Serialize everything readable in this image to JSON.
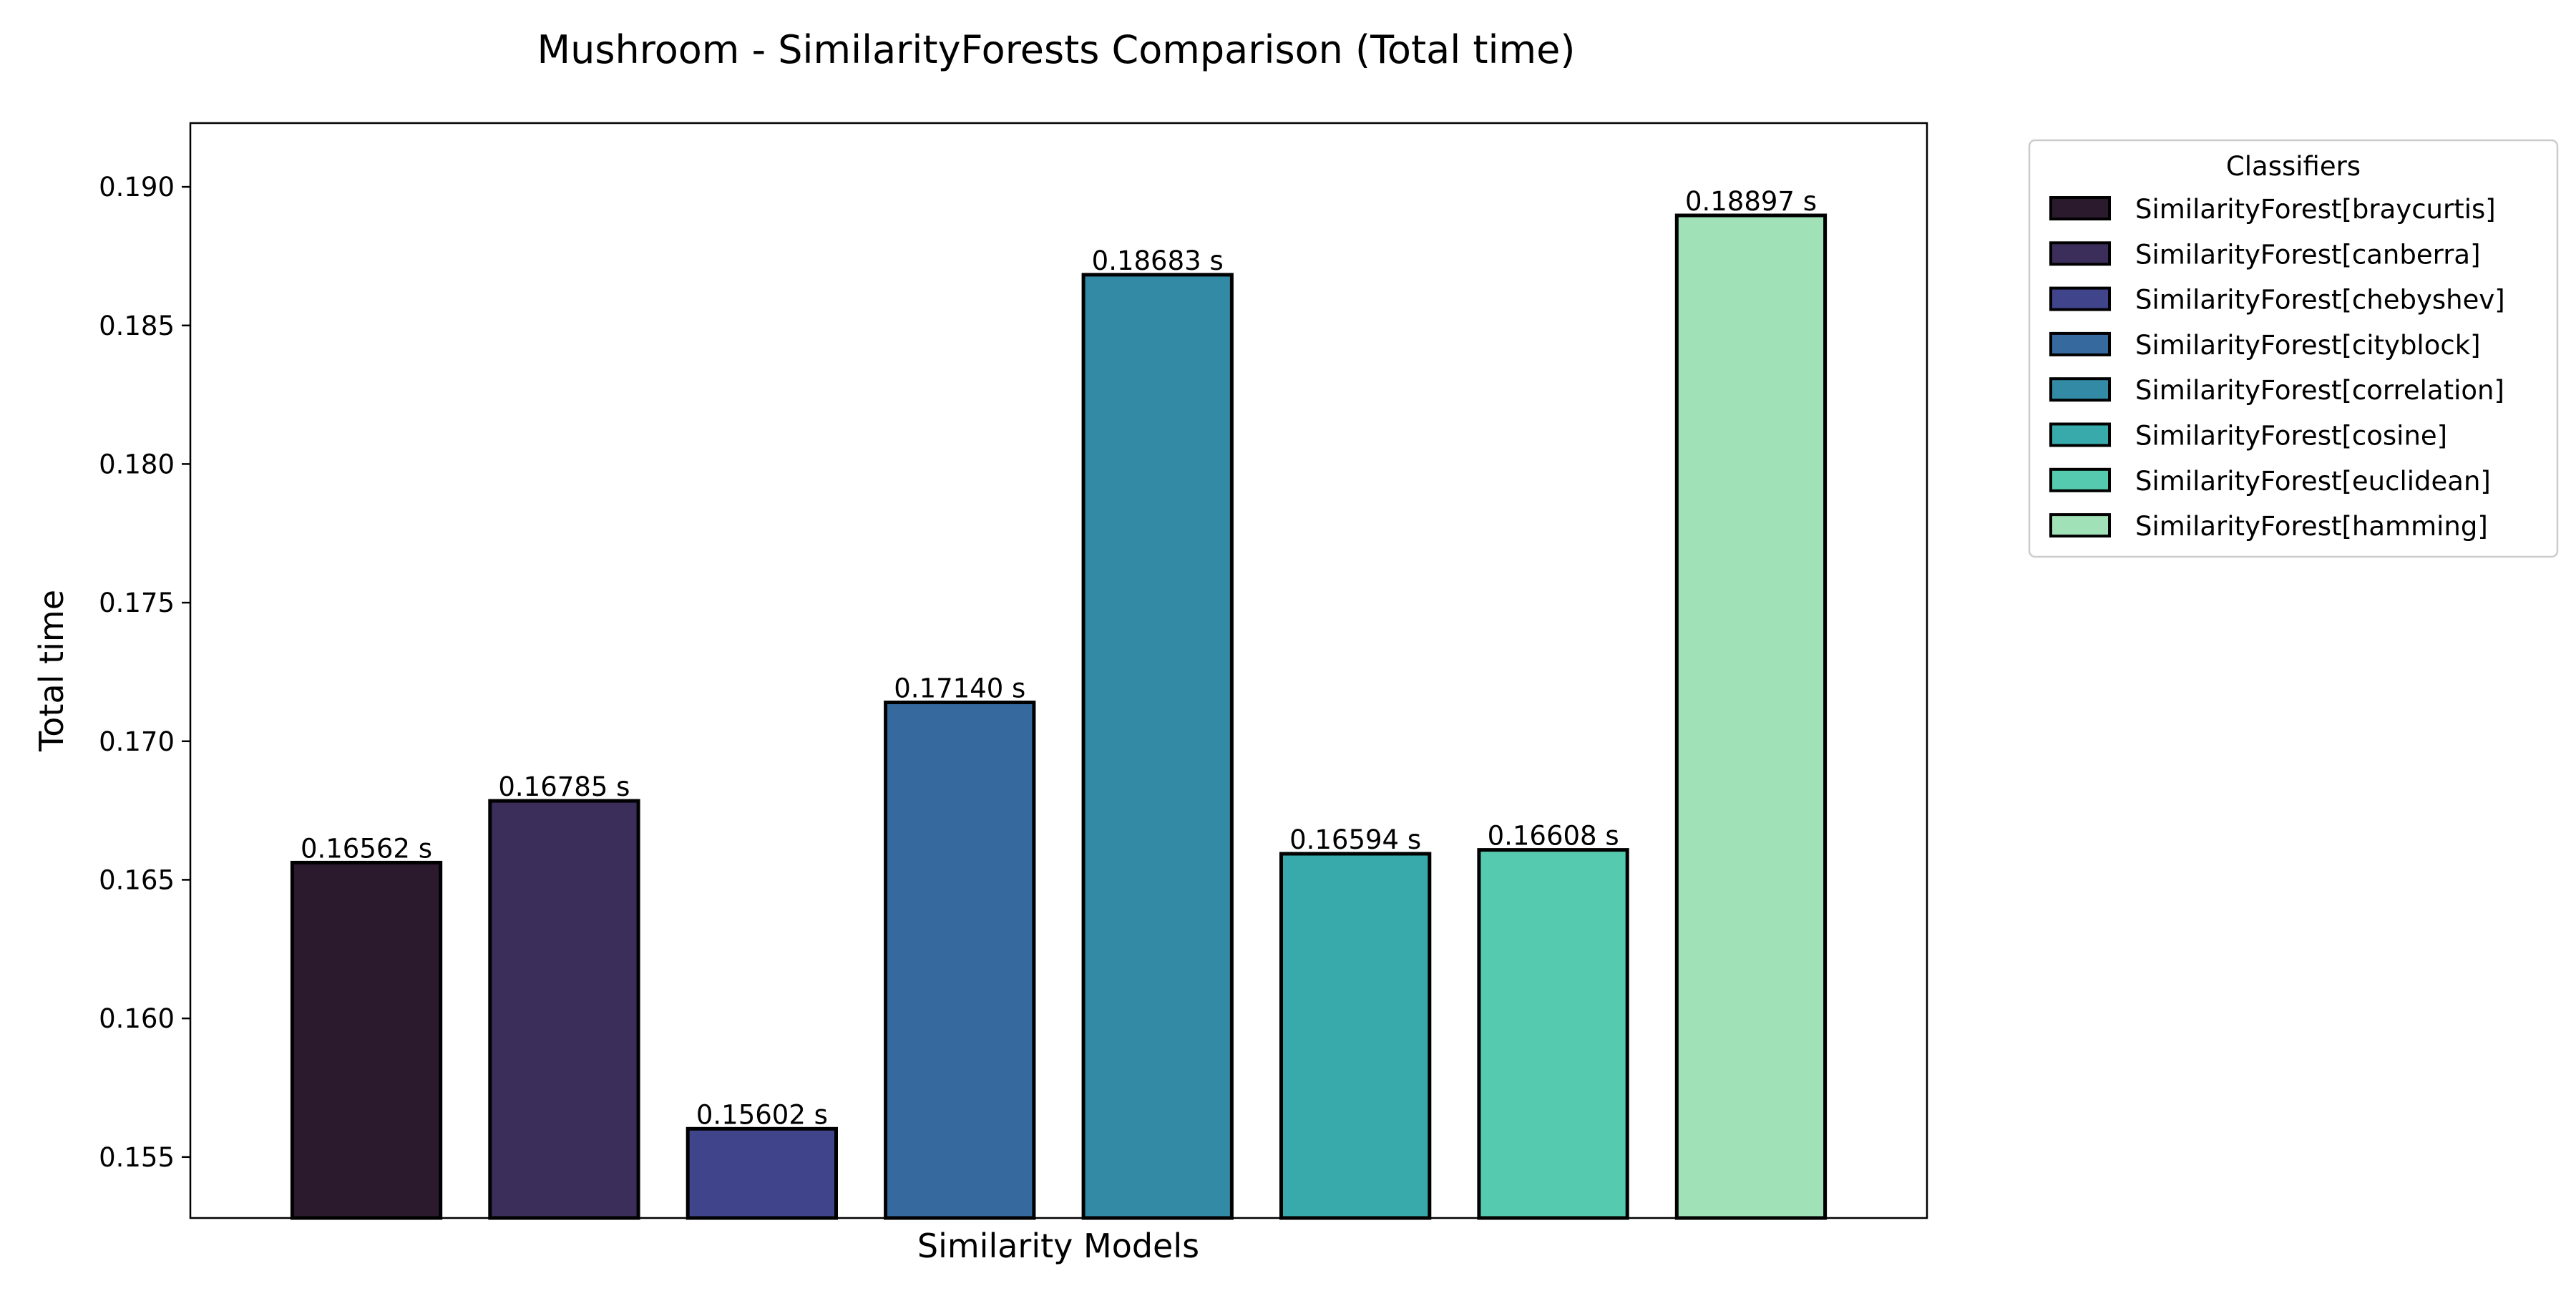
{
  "chart_data": {
    "type": "bar",
    "title": "Mushroom - SimilarityForests Comparison (Total time)",
    "xlabel": "Similarity Models",
    "ylabel": "Total time",
    "ylim": [
      0.1528,
      0.1923
    ],
    "yticks": [
      0.155,
      0.16,
      0.165,
      0.17,
      0.175,
      0.18,
      0.185,
      0.19
    ],
    "ytick_labels": [
      "0.155",
      "0.160",
      "0.165",
      "0.170",
      "0.175",
      "0.180",
      "0.185",
      "0.190"
    ],
    "grid": false,
    "legend": {
      "title": "Classifiers",
      "placement": "outside-right"
    },
    "categories": [
      "SimilarityForest[braycurtis]",
      "SimilarityForest[canberra]",
      "SimilarityForest[chebyshev]",
      "SimilarityForest[cityblock]",
      "SimilarityForest[correlation]",
      "SimilarityForest[cosine]",
      "SimilarityForest[euclidean]",
      "SimilarityForest[hamming]"
    ],
    "values": [
      0.16562,
      0.16785,
      0.15602,
      0.1714,
      0.18683,
      0.16594,
      0.16608,
      0.18897
    ],
    "value_labels": [
      "0.16562 s",
      "0.16785 s",
      "0.15602 s",
      "0.17140 s",
      "0.18683 s",
      "0.16594 s",
      "0.16608 s",
      "0.18897 s"
    ],
    "colors": [
      "#2b1a2e",
      "#3c2e5a",
      "#40448a",
      "#366a9f",
      "#328aa5",
      "#38aaac",
      "#55caae",
      "#a0e1b8"
    ],
    "bar_edge_color": "#000000"
  }
}
